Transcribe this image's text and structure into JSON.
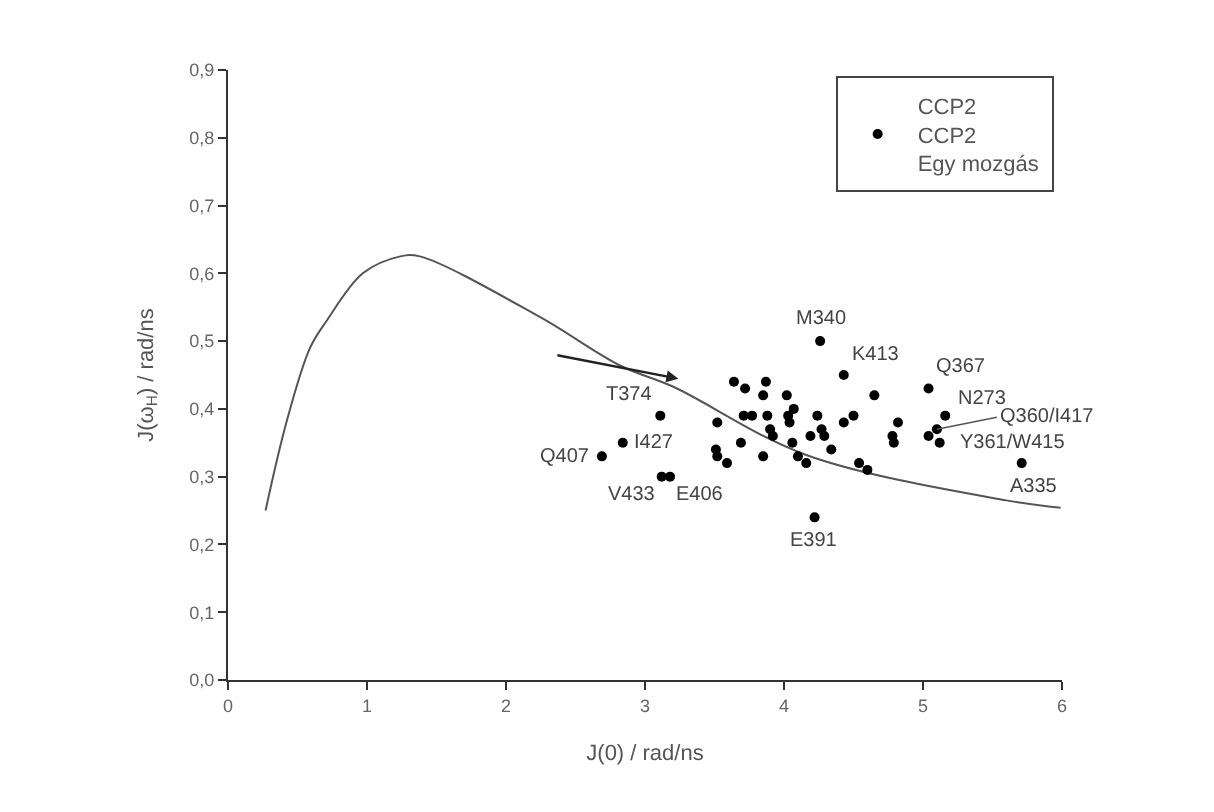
{
  "chart_data": {
    "type": "scatter",
    "xlabel": "J(0) / rad/ns",
    "ylabel": "J(ω$_{H}$) / rad/ns",
    "xlim": [
      0,
      6
    ],
    "ylim": [
      0,
      0.9
    ],
    "xticks": [
      0,
      1,
      2,
      3,
      4,
      5,
      6
    ],
    "yticks": [
      {
        "value": 0,
        "label": "0,0"
      },
      {
        "value": 0.1,
        "label": "0,1"
      },
      {
        "value": 0.2,
        "label": "0,2"
      },
      {
        "value": 0.3,
        "label": "0,3"
      },
      {
        "value": 0.4,
        "label": "0,4"
      },
      {
        "value": 0.5,
        "label": "0,5"
      },
      {
        "value": 0.6,
        "label": "0,6"
      },
      {
        "value": 0.7,
        "label": "0,7"
      },
      {
        "value": 0.8,
        "label": "0,8"
      },
      {
        "value": 0.9,
        "label": "0,9"
      }
    ],
    "legend": "top right",
    "series": [
      {
        "type": "line",
        "color": "#555555",
        "marker": "none",
        "line_style": "solid",
        "x": [
          0.27,
          0.42,
          0.59,
          0.71,
          0.97,
          1.24,
          1.38,
          2.24,
          2.82,
          3.2,
          4.16,
          5.6,
          5.99
        ],
        "values": [
          0.25,
          0.38,
          0.49,
          0.53,
          0.6,
          0.625,
          0.625,
          0.536,
          0.464,
          0.433,
          0.332,
          0.265,
          0.254
        ]
      },
      {
        "name": "CCP2\nCCP2\nEgy mozgás",
        "color": "#000000",
        "marker": "circle",
        "x": [
          4.26,
          4.43,
          5.04,
          5.16,
          5.04,
          5.1,
          5.12,
          5.71,
          4.22,
          3.11,
          2.84,
          2.69,
          3.12,
          3.18,
          3.64,
          3.72,
          3.87,
          3.85,
          4.02,
          3.71,
          3.77,
          3.88,
          3.52,
          4.03,
          4.07,
          3.9,
          3.92,
          4.04,
          4.24,
          4.27,
          4.43,
          4.5,
          4.65,
          4.82,
          4.78,
          4.79,
          3.69,
          4.06,
          4.19,
          4.29,
          4.34,
          3.51,
          3.52,
          3.59,
          3.85,
          4.1,
          4.16,
          4.54,
          4.6
        ],
        "values": [
          0.5,
          0.45,
          0.43,
          0.39,
          0.36,
          0.37,
          0.35,
          0.32,
          0.24,
          0.39,
          0.35,
          0.33,
          0.3,
          0.3,
          0.44,
          0.43,
          0.44,
          0.42,
          0.42,
          0.39,
          0.39,
          0.39,
          0.38,
          0.39,
          0.4,
          0.37,
          0.36,
          0.38,
          0.39,
          0.37,
          0.38,
          0.39,
          0.42,
          0.38,
          0.36,
          0.35,
          0.35,
          0.35,
          0.36,
          0.36,
          0.34,
          0.34,
          0.33,
          0.32,
          0.33,
          0.33,
          0.32,
          0.32,
          0.31
        ]
      }
    ],
    "annotations": [
      {
        "text": "M340",
        "x": 4.26,
        "y": 0.5
      },
      {
        "text": "K413",
        "x": 4.43,
        "y": 0.45
      },
      {
        "text": "Q367",
        "x": 5.04,
        "y": 0.43
      },
      {
        "text": "N273",
        "x": 5.16,
        "y": 0.39
      },
      {
        "text": "Q360/I417",
        "x": 5.1,
        "y": 0.37
      },
      {
        "text": "Y361/W415",
        "x": 5.12,
        "y": 0.35
      },
      {
        "text": "A335",
        "x": 5.71,
        "y": 0.32
      },
      {
        "text": "E391",
        "x": 4.22,
        "y": 0.24
      },
      {
        "text": "T374",
        "x": 3.11,
        "y": 0.39
      },
      {
        "text": "I427",
        "x": 2.84,
        "y": 0.35
      },
      {
        "text": "Q407",
        "x": 2.69,
        "y": 0.33
      },
      {
        "text": "V433",
        "x": 3.12,
        "y": 0.3
      },
      {
        "text": "E406",
        "x": 3.18,
        "y": 0.3
      }
    ]
  }
}
